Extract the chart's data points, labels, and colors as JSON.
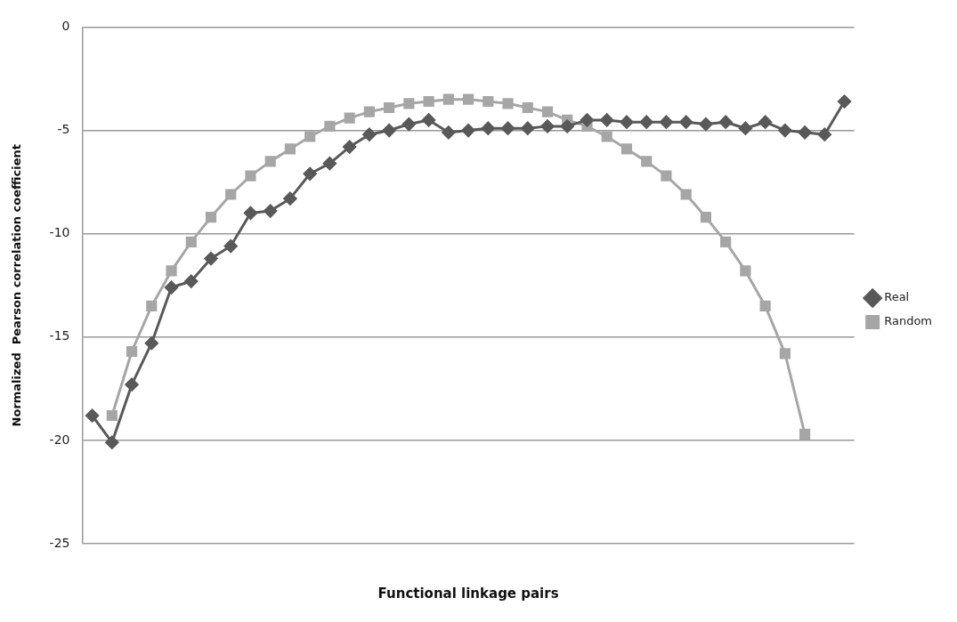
{
  "chart_data": {
    "type": "line",
    "xlabel": "Functional linkage pairs",
    "ylabel": "Normalized  Pearson correlation coefficient",
    "categories": [
      null,
      null,
      null,
      null,
      null,
      null,
      null,
      null,
      null,
      null,
      null,
      null,
      null,
      null,
      null,
      null,
      null,
      null,
      null,
      null,
      null,
      null,
      null,
      null,
      null,
      null,
      null,
      null,
      null,
      null,
      null,
      null,
      null,
      null,
      null,
      null,
      null,
      null,
      null
    ],
    "series": [
      {
        "name": "Real",
        "color": "#595959",
        "marker": "diamond",
        "values": [
          -18.8,
          -20.1,
          -17.3,
          -15.3,
          -12.6,
          -12.3,
          -11.2,
          -10.6,
          -9.0,
          -8.9,
          -8.3,
          -7.1,
          -6.6,
          -5.8,
          -5.2,
          -5.0,
          -4.7,
          -4.5,
          -5.1,
          -5.0,
          -4.9,
          -4.9,
          -4.9,
          -4.8,
          -4.8,
          -4.5,
          -4.5,
          -4.6,
          -4.6,
          -4.6,
          -4.6,
          -4.7,
          -4.6,
          -4.9,
          -4.6,
          -5.0,
          -5.1,
          -5.2,
          -3.6
        ]
      },
      {
        "name": "Random",
        "color": "#a6a6a6",
        "marker": "square",
        "values": [
          null,
          -18.8,
          -15.7,
          -13.5,
          -11.8,
          -10.4,
          -9.2,
          -8.1,
          -7.2,
          -6.5,
          -5.9,
          -5.3,
          -4.8,
          -4.4,
          -4.1,
          -3.9,
          -3.7,
          -3.6,
          -3.5,
          -3.5,
          -3.6,
          -3.7,
          -3.9,
          -4.1,
          -4.5,
          -4.8,
          -5.3,
          -5.9,
          -6.5,
          -7.2,
          -8.1,
          -9.2,
          -10.4,
          -11.8,
          -13.5,
          -15.8,
          -19.7,
          null,
          null
        ]
      }
    ],
    "ylim": [
      -25,
      0
    ],
    "yticks": [
      -25,
      -20,
      -15,
      -10,
      -5,
      0
    ],
    "grid": "y",
    "legend": "right",
    "tick_labels": "y"
  }
}
